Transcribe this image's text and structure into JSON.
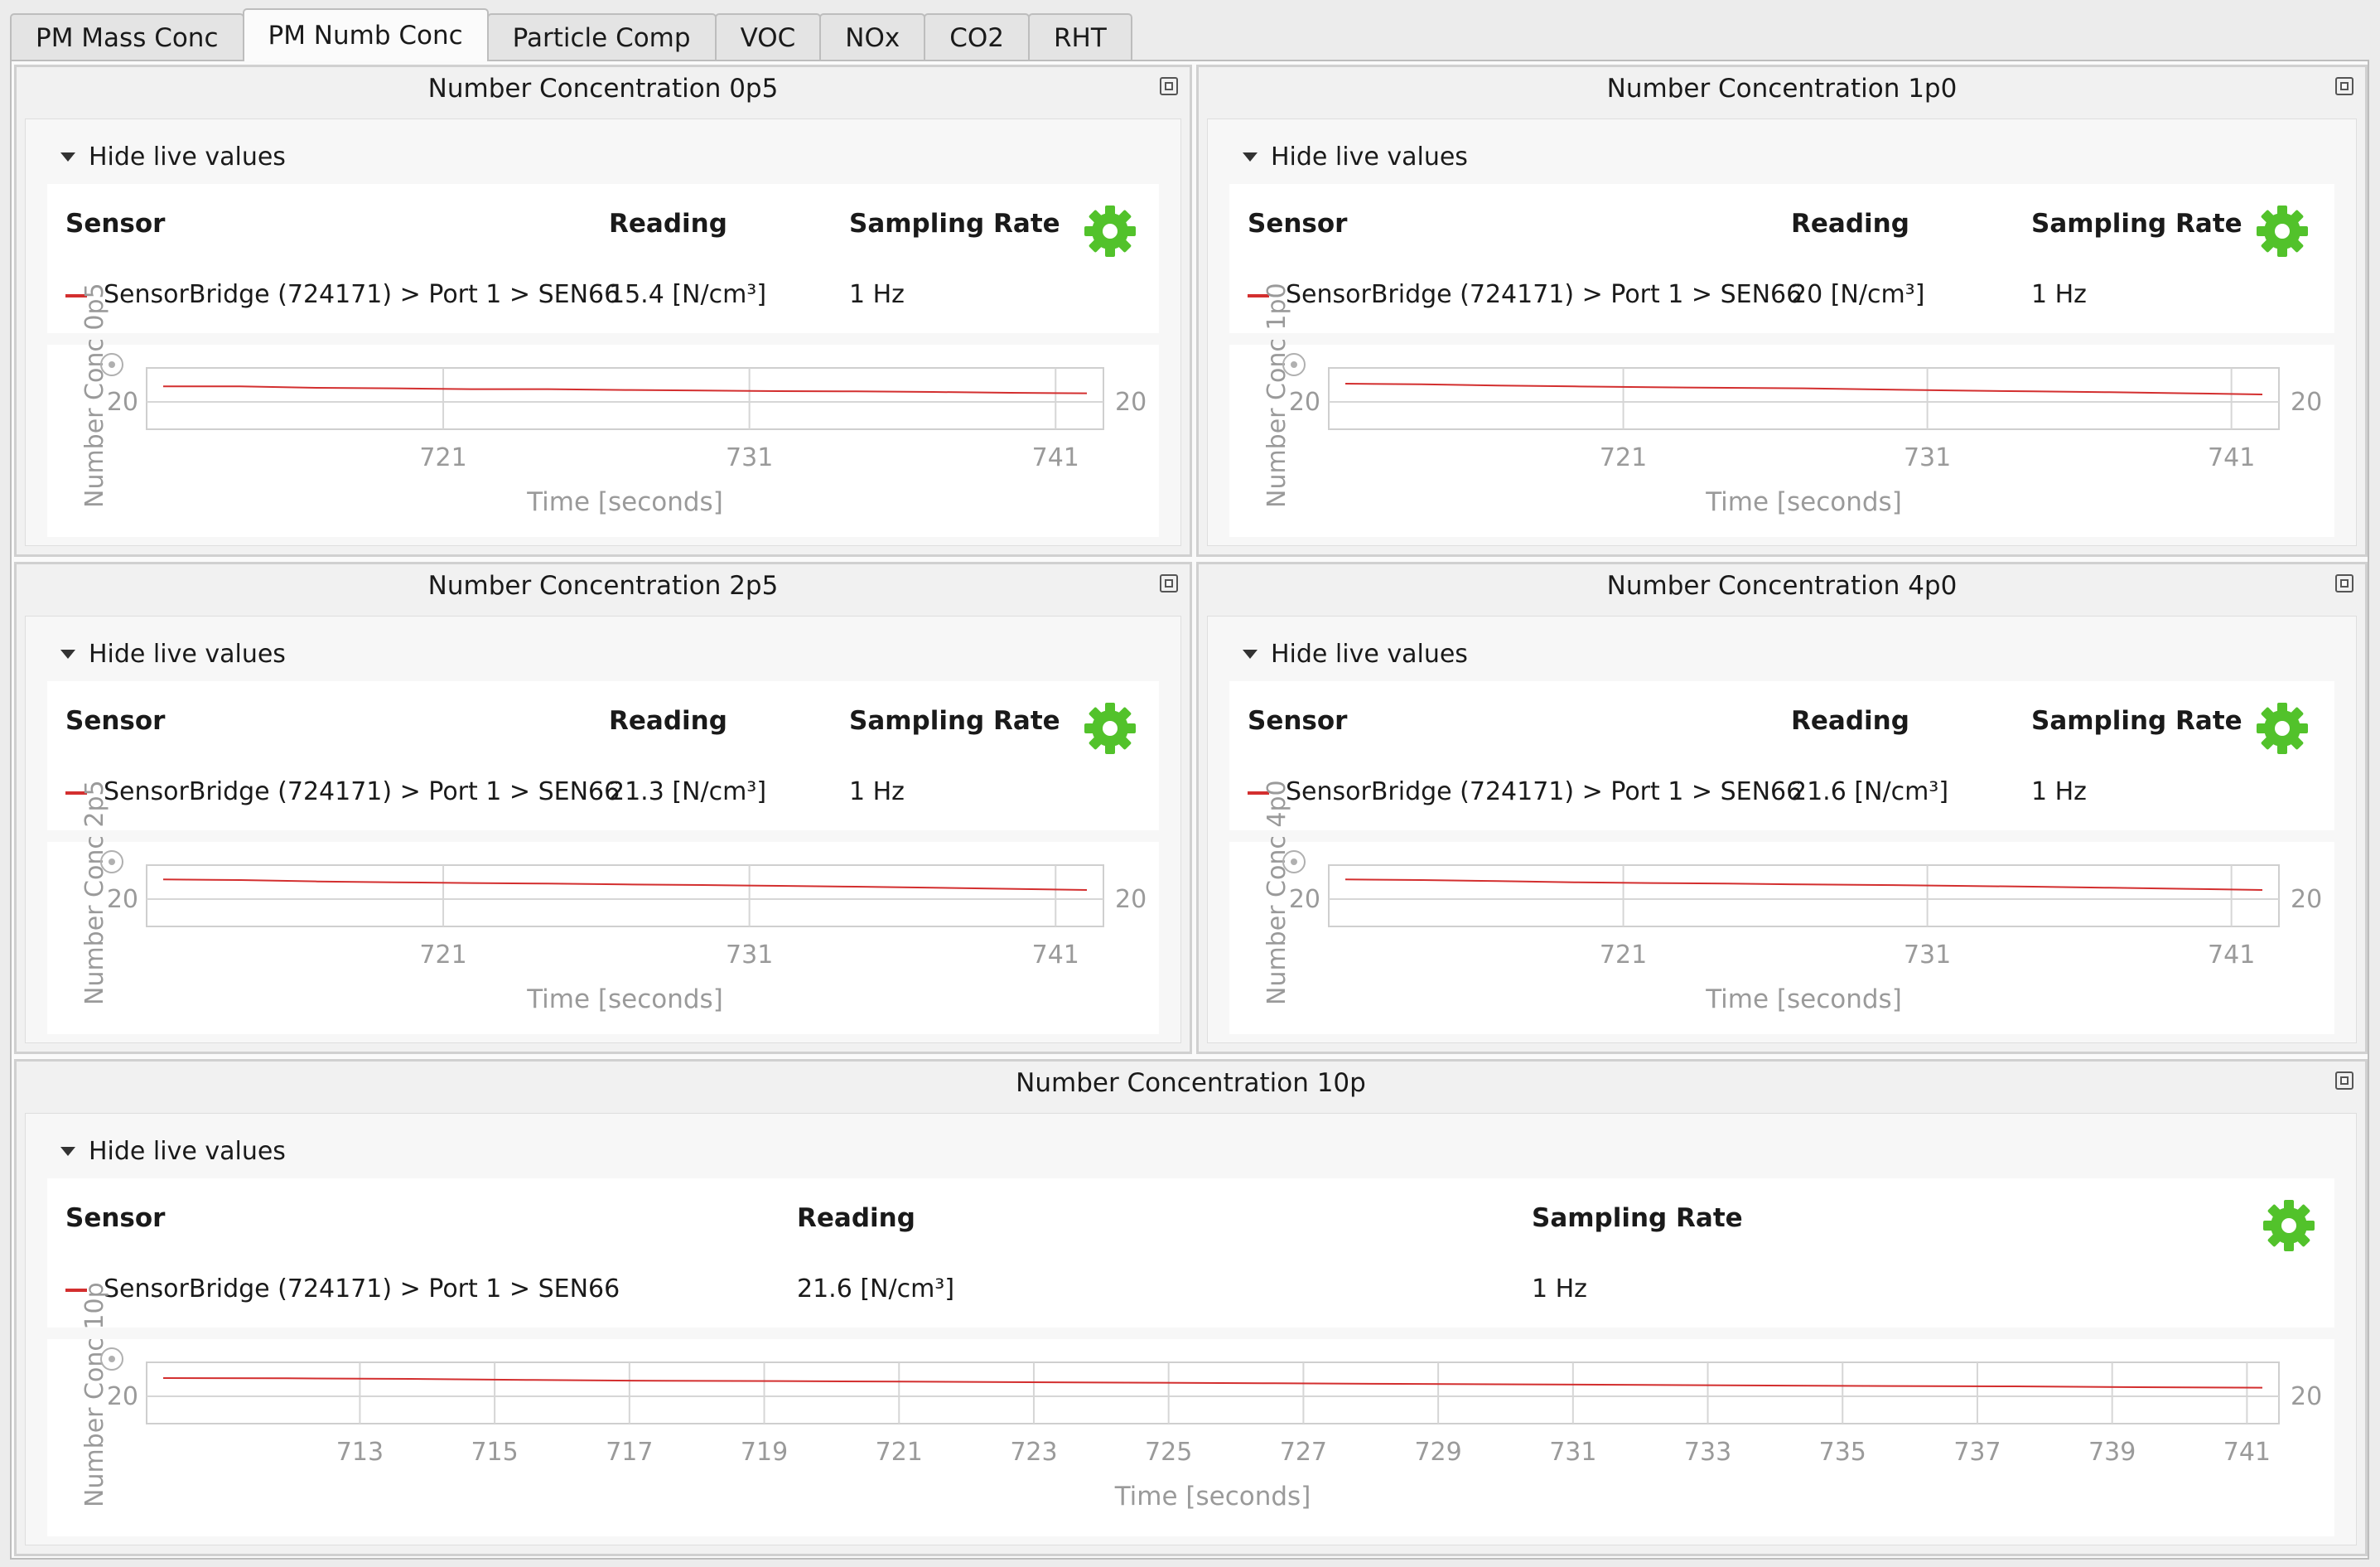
{
  "tabs": [
    {
      "label": "PM Mass Conc",
      "active": false
    },
    {
      "label": "PM Numb Conc",
      "active": true
    },
    {
      "label": "Particle Comp",
      "active": false
    },
    {
      "label": "VOC",
      "active": false
    },
    {
      "label": "NOx",
      "active": false
    },
    {
      "label": "CO2",
      "active": false
    },
    {
      "label": "RHT",
      "active": false
    }
  ],
  "colors": {
    "series": "#d32f2f",
    "gear": "#52c22b",
    "grid": "#d6d6d6",
    "axis_text": "#9a9a9a"
  },
  "panels": [
    {
      "title": "Number Concentration 0p5",
      "toggle": "Hide live values",
      "headers": {
        "sensor": "Sensor",
        "reading": "Reading",
        "rate": "Sampling Rate"
      },
      "row": {
        "sensor": "SensorBridge (724171) > Port 1 > SEN66",
        "reading": "15.4 [N/cm³]",
        "rate": "1 Hz"
      },
      "ylabel": "Number Conc 0p5",
      "xlabel": "Time [seconds]",
      "y_tick": "20",
      "x_ticks": [
        "721",
        "731",
        "741"
      ]
    },
    {
      "title": "Number Concentration 1p0",
      "toggle": "Hide live values",
      "headers": {
        "sensor": "Sensor",
        "reading": "Reading",
        "rate": "Sampling Rate"
      },
      "row": {
        "sensor": "SensorBridge (724171) > Port 1 > SEN66",
        "reading": "20 [N/cm³]",
        "rate": "1 Hz"
      },
      "ylabel": "Number Conc 1p0",
      "xlabel": "Time [seconds]",
      "y_tick": "20",
      "x_ticks": [
        "721",
        "731",
        "741"
      ]
    },
    {
      "title": "Number Concentration 2p5",
      "toggle": "Hide live values",
      "headers": {
        "sensor": "Sensor",
        "reading": "Reading",
        "rate": "Sampling Rate"
      },
      "row": {
        "sensor": "SensorBridge (724171) > Port 1 > SEN66",
        "reading": "21.3 [N/cm³]",
        "rate": "1 Hz"
      },
      "ylabel": "Number Conc 2p5",
      "xlabel": "Time [seconds]",
      "y_tick": "20",
      "x_ticks": [
        "721",
        "731",
        "741"
      ]
    },
    {
      "title": "Number Concentration 4p0",
      "toggle": "Hide live values",
      "headers": {
        "sensor": "Sensor",
        "reading": "Reading",
        "rate": "Sampling Rate"
      },
      "row": {
        "sensor": "SensorBridge (724171) > Port 1 > SEN66",
        "reading": "21.6 [N/cm³]",
        "rate": "1 Hz"
      },
      "ylabel": "Number Conc 4p0",
      "xlabel": "Time [seconds]",
      "y_tick": "20",
      "x_ticks": [
        "721",
        "731",
        "741"
      ]
    },
    {
      "title": "Number Concentration 10p",
      "toggle": "Hide live values",
      "headers": {
        "sensor": "Sensor",
        "reading": "Reading",
        "rate": "Sampling Rate"
      },
      "row": {
        "sensor": "SensorBridge (724171) > Port 1 > SEN66",
        "reading": "21.6 [N/cm³]",
        "rate": "1 Hz"
      },
      "ylabel": "Number Conc 10p",
      "xlabel": "Time [seconds]",
      "y_tick": "20",
      "x_ticks": [
        "713",
        "715",
        "717",
        "719",
        "721",
        "723",
        "725",
        "727",
        "729",
        "731",
        "733",
        "735",
        "737",
        "739",
        "741"
      ]
    }
  ]
}
